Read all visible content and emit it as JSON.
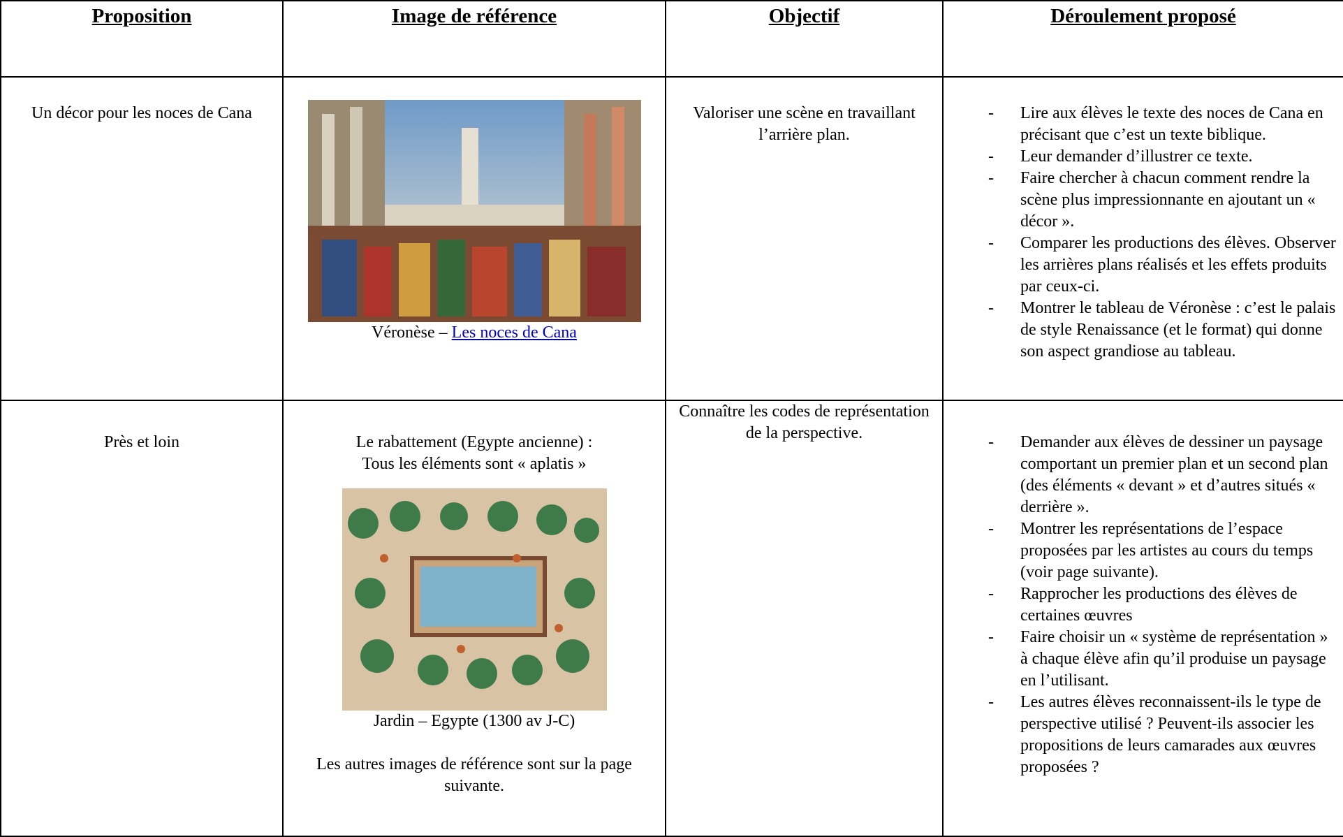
{
  "header": {
    "columns": [
      "Proposition",
      "Image de référence",
      "Objectif",
      "Déroulement proposé"
    ]
  },
  "rows": [
    {
      "proposition": "Un décor pour les noces de Cana",
      "reference": {
        "caption_prefix": "Véronèse –",
        "caption_link": "Les noces de Cana"
      },
      "objective": "Valoriser une scène en travaillant l’arrière plan.",
      "steps": [
        "Lire aux élèves le texte des noces de Cana en précisant que c’est un texte biblique.",
        "Leur demander d’illustrer ce texte.",
        "Faire chercher à chacun comment rendre la scène plus impressionnante en ajoutant un « décor ».",
        "Comparer les productions des élèves. Observer les arrières plans réalisés et les effets produits par ceux-ci.",
        "Montrer le tableau de Véronèse : c’est le palais de style Renaissance (et le format) qui donne son aspect grandiose au tableau."
      ]
    },
    {
      "proposition": "Près et loin",
      "reference": {
        "intro": [
          "Le rabattement (Egypte ancienne) :",
          "Tous les éléments sont « aplatis »"
        ],
        "caption": "Jardin – Egypte (1300 av J-C)",
        "note": "Les autres images de référence sont sur la page suivante."
      },
      "objective": "Connaître les codes de représentation de la perspective.",
      "steps": [
        "Demander aux élèves de dessiner un paysage comportant un premier plan et un second plan (des éléments « devant » et d’autres situés « derrière ».",
        "Montrer les représentations de l’espace proposées par les artistes au cours du temps (voir page suivante).",
        "Rapprocher les productions des élèves de certaines œuvres",
        "Faire choisir un « système de représentation » à chaque élève afin qu’il produise un paysage en l’utilisant.",
        "Les autres élèves reconnaissent-ils le type de perspective utilisé ? Peuvent-ils associer les propositions de leurs camarades aux œuvres proposées ?"
      ]
    }
  ]
}
